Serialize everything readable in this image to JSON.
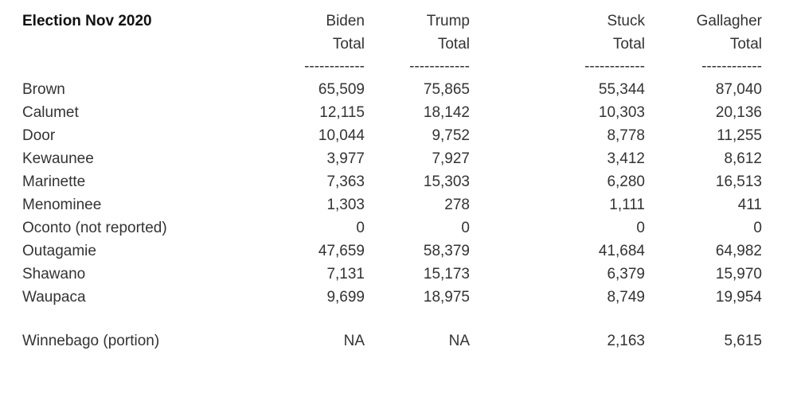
{
  "page": {
    "background_color": "#ffffff",
    "text_color": "#333333"
  },
  "table": {
    "title": "Election Nov 2020",
    "columns": [
      {
        "name": "Biden",
        "sub": "Total"
      },
      {
        "name": "Trump",
        "sub": "Total"
      },
      {
        "name": "Stuck",
        "sub": "Total"
      },
      {
        "name": "Gallagher",
        "sub": "Total"
      }
    ],
    "separator": "------------",
    "rows": [
      {
        "county": "Brown",
        "values": [
          "65,509",
          "75,865",
          "55,344",
          "87,040"
        ]
      },
      {
        "county": "Calumet",
        "values": [
          "12,115",
          "18,142",
          "10,303",
          "20,136"
        ]
      },
      {
        "county": "Door",
        "values": [
          "10,044",
          "9,752",
          "8,778",
          "11,255"
        ]
      },
      {
        "county": "Kewaunee",
        "values": [
          "3,977",
          "7,927",
          "3,412",
          "8,612"
        ]
      },
      {
        "county": "Marinette",
        "values": [
          "7,363",
          "15,303",
          "6,280",
          "16,513"
        ]
      },
      {
        "county": "Menominee",
        "values": [
          "1,303",
          "278",
          "1,111",
          "411"
        ]
      },
      {
        "county": "Oconto (not reported)",
        "values": [
          "0",
          "0",
          "0",
          "0"
        ]
      },
      {
        "county": "Outagamie",
        "values": [
          "47,659",
          "58,379",
          "41,684",
          "64,982"
        ]
      },
      {
        "county": "Shawano",
        "values": [
          "7,131",
          "15,173",
          "6,379",
          "15,970"
        ]
      },
      {
        "county": "Waupaca",
        "values": [
          "9,699",
          "18,975",
          "8,749",
          "19,954"
        ]
      }
    ],
    "extra_rows": [
      {
        "county": "Winnebago (portion)",
        "values": [
          "NA",
          "NA",
          "2,163",
          "5,615"
        ]
      }
    ]
  }
}
